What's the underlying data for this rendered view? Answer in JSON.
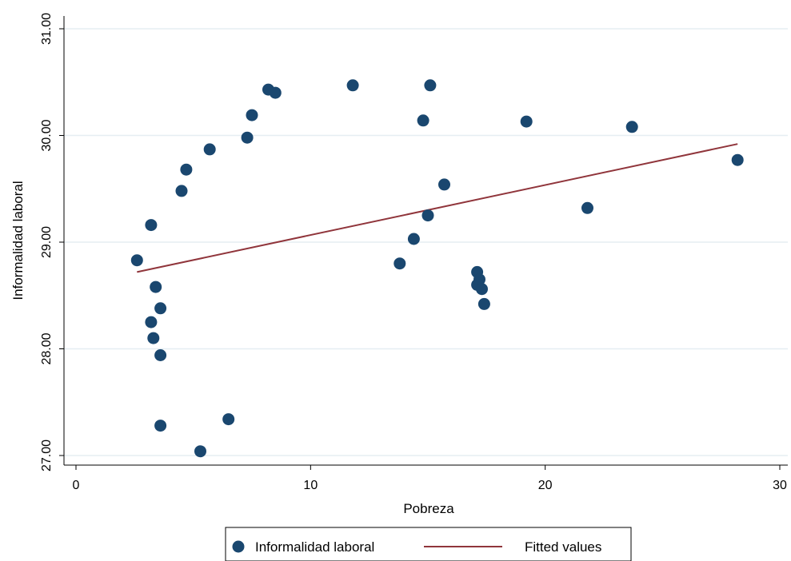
{
  "chart_data": {
    "type": "scatter",
    "xlabel": "Pobreza",
    "ylabel": "Informalidad laboral",
    "xlim": [
      0,
      30
    ],
    "ylim": [
      27,
      31
    ],
    "x_ticks": [
      "0",
      "10",
      "20",
      "30"
    ],
    "y_ticks": [
      "27.00",
      "28.00",
      "29.00",
      "30.00",
      "31.00"
    ],
    "grid": "horizontal",
    "legend_position": "bottom",
    "series": [
      {
        "name": "Informalidad laboral",
        "kind": "scatter",
        "color": "#1a476f",
        "points": [
          [
            2.6,
            28.83
          ],
          [
            3.2,
            29.16
          ],
          [
            3.4,
            28.58
          ],
          [
            3.6,
            28.38
          ],
          [
            3.2,
            28.25
          ],
          [
            3.3,
            28.1
          ],
          [
            3.6,
            27.94
          ],
          [
            3.6,
            27.28
          ],
          [
            4.5,
            29.48
          ],
          [
            4.7,
            29.68
          ],
          [
            5.7,
            29.87
          ],
          [
            5.3,
            27.04
          ],
          [
            6.5,
            27.34
          ],
          [
            7.3,
            29.98
          ],
          [
            7.5,
            30.19
          ],
          [
            8.2,
            30.43
          ],
          [
            8.5,
            30.4
          ],
          [
            11.8,
            30.47
          ],
          [
            13.8,
            28.8
          ],
          [
            14.4,
            29.03
          ],
          [
            14.8,
            30.14
          ],
          [
            15.0,
            29.25
          ],
          [
            15.1,
            30.47
          ],
          [
            15.7,
            29.54
          ],
          [
            17.1,
            28.72
          ],
          [
            17.2,
            28.65
          ],
          [
            17.1,
            28.6
          ],
          [
            17.3,
            28.56
          ],
          [
            17.4,
            28.42
          ],
          [
            19.2,
            30.13
          ],
          [
            21.8,
            29.32
          ],
          [
            23.7,
            30.08
          ],
          [
            28.2,
            29.77
          ]
        ]
      },
      {
        "name": "Fitted values",
        "kind": "line",
        "color": "#90353b",
        "points": [
          [
            2.6,
            28.72
          ],
          [
            28.2,
            29.92
          ]
        ]
      }
    ]
  }
}
